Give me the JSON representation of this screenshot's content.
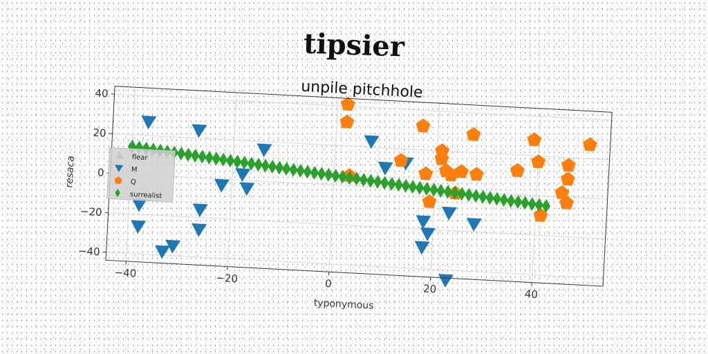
{
  "figure": {
    "title": "tipsier"
  },
  "chart_data": {
    "type": "scatter",
    "title": "unpile pitchhole",
    "xlabel": "typonymous",
    "ylabel": "resaca",
    "xlim": [
      -44,
      54
    ],
    "ylim": [
      -44,
      44
    ],
    "xticks": [
      -40,
      -20,
      0,
      20,
      40
    ],
    "yticks": [
      -40,
      -20,
      0,
      20,
      40
    ],
    "grid": true,
    "legend_position": "left",
    "series": [
      {
        "name": "flear",
        "marker": "triangle-up",
        "color": "#c8c8c8",
        "points": []
      },
      {
        "name": "M",
        "marker": "triangle-down",
        "color": "#1f77b4",
        "points": [
          [
            -37,
            27
          ],
          [
            -38,
            -15
          ],
          [
            -38,
            -26
          ],
          [
            -33,
            -38
          ],
          [
            -31,
            -35
          ],
          [
            -27,
            24
          ],
          [
            -26,
            -16
          ],
          [
            -26,
            -26
          ],
          [
            -22,
            -3
          ],
          [
            -18,
            3
          ],
          [
            -17,
            -4
          ],
          [
            -14,
            16
          ],
          [
            7,
            23
          ],
          [
            10,
            10
          ],
          [
            14,
            13
          ],
          [
            18,
            -16
          ],
          [
            18,
            -29
          ],
          [
            19,
            -22
          ],
          [
            23,
            -11
          ],
          [
            23,
            -45
          ],
          [
            28,
            -16
          ]
        ]
      },
      {
        "name": "Q",
        "marker": "pentagon",
        "color": "#ff7f0e",
        "points": [
          [
            2,
            41
          ],
          [
            2,
            32
          ],
          [
            3,
            5
          ],
          [
            13,
            14
          ],
          [
            17,
            32
          ],
          [
            18,
            8
          ],
          [
            19,
            -6
          ],
          [
            21,
            20
          ],
          [
            21,
            16
          ],
          [
            22,
            10
          ],
          [
            23,
            8
          ],
          [
            24,
            -1
          ],
          [
            25,
            10
          ],
          [
            27,
            29
          ],
          [
            28,
            9
          ],
          [
            36,
            12
          ],
          [
            39,
            28
          ],
          [
            40,
            17
          ],
          [
            41,
            -10
          ],
          [
            45,
            2
          ],
          [
            46,
            16
          ],
          [
            46,
            9
          ],
          [
            46,
            -3
          ],
          [
            50,
            27
          ]
        ]
      },
      {
        "name": "surrealist",
        "marker": "diamond",
        "color": "#2ca02c",
        "line": {
          "x": [
            -40,
            42
          ],
          "y": [
            14,
            -5
          ],
          "n": 60
        }
      }
    ]
  }
}
